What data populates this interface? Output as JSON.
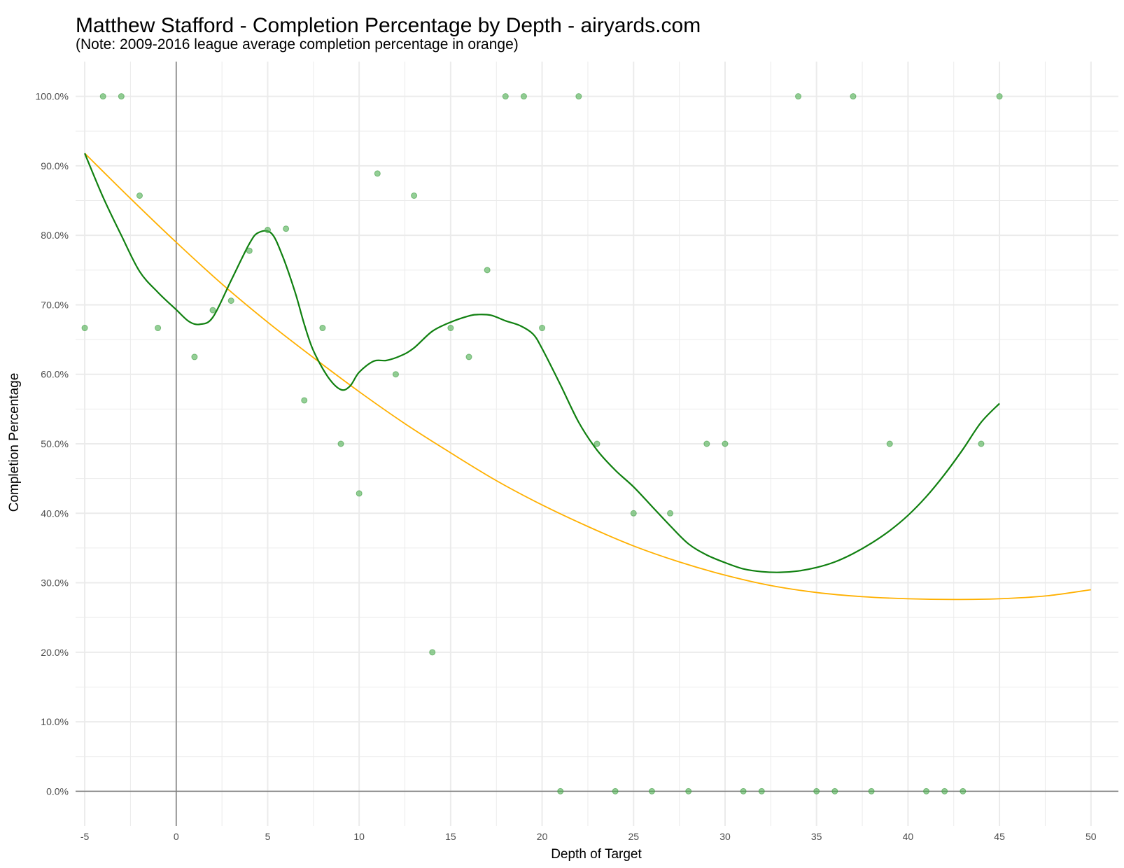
{
  "chart_data": {
    "type": "scatter",
    "title": "Matthew Stafford - Completion Percentage by Depth - airyards.com",
    "subtitle": "(Note: 2009-2016 league average completion percentage in orange)",
    "xlabel": "Depth of Target",
    "ylabel": "Completion Percentage",
    "xlim": [
      -5.5,
      51.5
    ],
    "ylim": [
      -0.05,
      1.05
    ],
    "x_ticks": [
      -5,
      0,
      5,
      10,
      15,
      20,
      25,
      30,
      35,
      40,
      45,
      50
    ],
    "y_ticks": [
      0,
      0.1,
      0.2,
      0.3,
      0.4,
      0.5,
      0.6,
      0.7,
      0.8,
      0.9,
      1.0
    ],
    "y_tick_labels": [
      "0.0%",
      "10.0%",
      "20.0%",
      "30.0%",
      "40.0%",
      "50.0%",
      "60.0%",
      "70.0%",
      "80.0%",
      "90.0%",
      "100.0%"
    ],
    "grid": true,
    "reference_lines": {
      "x": 0,
      "y": 0
    },
    "colors": {
      "points": "#4CAF50",
      "player_line": "#108010",
      "league_line": "#FFB000",
      "reference": "#808080",
      "grid": "#ebebeb"
    },
    "points": [
      {
        "x": -5,
        "y": 0.6667
      },
      {
        "x": -4,
        "y": 1.0
      },
      {
        "x": -3,
        "y": 1.0
      },
      {
        "x": -2,
        "y": 0.8571
      },
      {
        "x": -1,
        "y": 0.6667
      },
      {
        "x": 1,
        "y": 0.625
      },
      {
        "x": 2,
        "y": 0.6923
      },
      {
        "x": 3,
        "y": 0.7059
      },
      {
        "x": 4,
        "y": 0.7778
      },
      {
        "x": 5,
        "y": 0.8077
      },
      {
        "x": 6,
        "y": 0.8095
      },
      {
        "x": 7,
        "y": 0.5625
      },
      {
        "x": 8,
        "y": 0.6667
      },
      {
        "x": 9,
        "y": 0.5
      },
      {
        "x": 10,
        "y": 0.4286
      },
      {
        "x": 11,
        "y": 0.8889
      },
      {
        "x": 12,
        "y": 0.6
      },
      {
        "x": 13,
        "y": 0.8571
      },
      {
        "x": 14,
        "y": 0.2
      },
      {
        "x": 15,
        "y": 0.6667
      },
      {
        "x": 16,
        "y": 0.625
      },
      {
        "x": 17,
        "y": 0.75
      },
      {
        "x": 18,
        "y": 1.0
      },
      {
        "x": 19,
        "y": 1.0
      },
      {
        "x": 20,
        "y": 0.6667
      },
      {
        "x": 21,
        "y": 0.0
      },
      {
        "x": 22,
        "y": 1.0
      },
      {
        "x": 23,
        "y": 0.5
      },
      {
        "x": 24,
        "y": 0.0
      },
      {
        "x": 25,
        "y": 0.4
      },
      {
        "x": 26,
        "y": 0.0
      },
      {
        "x": 27,
        "y": 0.4
      },
      {
        "x": 28,
        "y": 0.0
      },
      {
        "x": 29,
        "y": 0.5
      },
      {
        "x": 30,
        "y": 0.5
      },
      {
        "x": 31,
        "y": 0.0
      },
      {
        "x": 32,
        "y": 0.0
      },
      {
        "x": 34,
        "y": 1.0
      },
      {
        "x": 35,
        "y": 0.0
      },
      {
        "x": 36,
        "y": 0.0
      },
      {
        "x": 37,
        "y": 1.0
      },
      {
        "x": 38,
        "y": 0.0
      },
      {
        "x": 39,
        "y": 0.5
      },
      {
        "x": 41,
        "y": 0.0
      },
      {
        "x": 42,
        "y": 0.0
      },
      {
        "x": 43,
        "y": 0.0
      },
      {
        "x": 44,
        "y": 0.5
      },
      {
        "x": 45,
        "y": 1.0
      }
    ],
    "series": [
      {
        "type": "line",
        "x": [
          -5,
          -4,
          -3,
          -2,
          -1,
          0,
          0.7,
          1.3,
          2,
          3,
          4,
          4.5,
          5.2,
          5.8,
          6.5,
          7,
          7.5,
          8.3,
          9,
          9.5,
          10,
          10.8,
          11.5,
          12.3,
          13,
          14,
          15,
          16,
          16.5,
          17.2,
          18,
          18.8,
          19.5,
          20,
          21,
          22,
          23,
          24,
          25,
          26,
          27,
          28,
          29,
          30,
          31,
          32,
          33,
          34,
          35,
          36,
          37,
          38,
          39,
          40,
          41,
          42,
          43,
          44,
          45
        ],
        "y": [
          0.918,
          0.855,
          0.8,
          0.748,
          0.718,
          0.693,
          0.676,
          0.672,
          0.682,
          0.735,
          0.788,
          0.804,
          0.803,
          0.771,
          0.718,
          0.672,
          0.634,
          0.596,
          0.578,
          0.583,
          0.603,
          0.619,
          0.62,
          0.627,
          0.638,
          0.662,
          0.675,
          0.684,
          0.686,
          0.685,
          0.677,
          0.67,
          0.658,
          0.637,
          0.585,
          0.531,
          0.491,
          0.462,
          0.438,
          0.41,
          0.382,
          0.356,
          0.34,
          0.329,
          0.32,
          0.316,
          0.315,
          0.317,
          0.322,
          0.33,
          0.342,
          0.357,
          0.375,
          0.397,
          0.424,
          0.456,
          0.492,
          0.531,
          0.558
        ]
      },
      {
        "type": "line",
        "x": [
          -5,
          -2.5,
          0,
          2.5,
          5,
          7.5,
          10,
          12.5,
          15,
          17.5,
          20,
          22.5,
          25,
          27.5,
          30,
          32.5,
          35,
          37.5,
          40,
          42.5,
          45,
          47.5,
          50
        ],
        "y": [
          0.918,
          0.853,
          0.79,
          0.73,
          0.675,
          0.624,
          0.575,
          0.529,
          0.487,
          0.447,
          0.412,
          0.381,
          0.353,
          0.33,
          0.311,
          0.296,
          0.286,
          0.28,
          0.277,
          0.276,
          0.277,
          0.281,
          0.29
        ]
      }
    ]
  }
}
